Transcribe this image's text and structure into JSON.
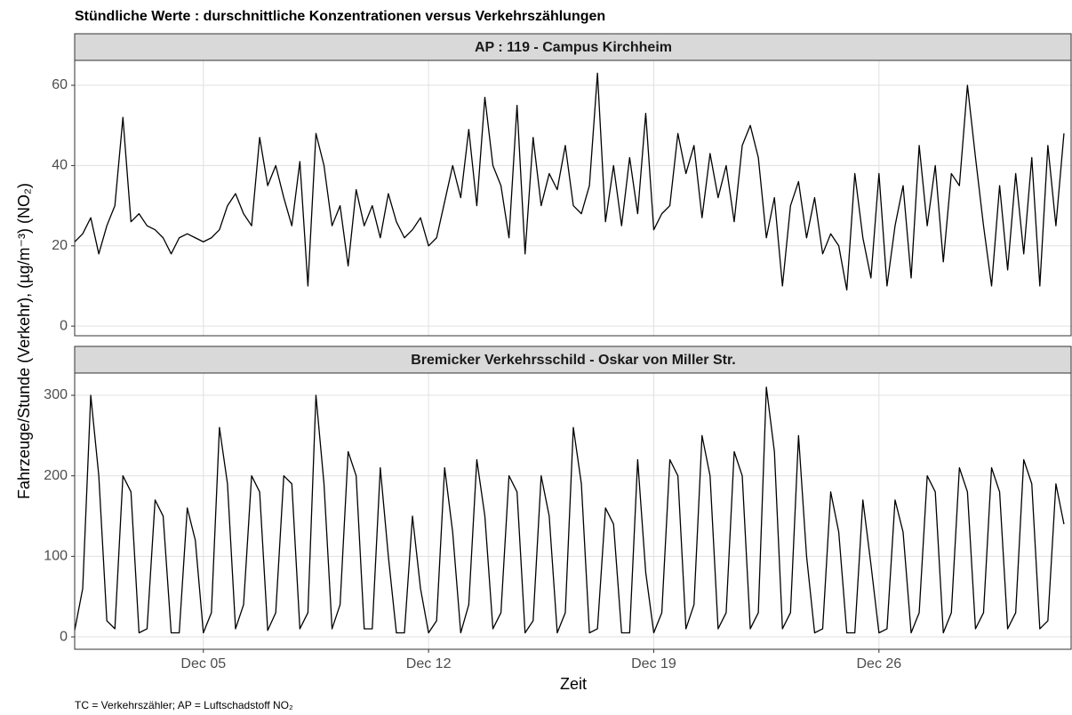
{
  "chart_data": {
    "type": "line",
    "title": "Stündliche Werte : durschnittliche Konzentrationen versus Verkehrszählungen",
    "y_label": "Fahrzeuge/Stunde (Verkehr), (µg/m⁻³) (NO₂)",
    "x_label": "Zeit",
    "caption": "TC = Verkehrszähler; AP = Luftschadstoff NO₂",
    "grid": true,
    "xlim": [
      1,
      32
    ],
    "xticks": [
      {
        "value": 5,
        "label": "Dec 05"
      },
      {
        "value": 12,
        "label": "Dec 12"
      },
      {
        "value": 19,
        "label": "Dec 19"
      },
      {
        "value": 26,
        "label": "Dec 26"
      }
    ],
    "x": [
      1,
      1.25,
      1.5,
      1.75,
      2,
      2.25,
      2.5,
      2.75,
      3,
      3.25,
      3.5,
      3.75,
      4,
      4.25,
      4.5,
      4.75,
      5,
      5.25,
      5.5,
      5.75,
      6,
      6.25,
      6.5,
      6.75,
      7,
      7.25,
      7.5,
      7.75,
      8,
      8.25,
      8.5,
      8.75,
      9,
      9.25,
      9.5,
      9.75,
      10,
      10.25,
      10.5,
      10.75,
      11,
      11.25,
      11.5,
      11.75,
      12,
      12.25,
      12.5,
      12.75,
      13,
      13.25,
      13.5,
      13.75,
      14,
      14.25,
      14.5,
      14.75,
      15,
      15.25,
      15.5,
      15.75,
      16,
      16.25,
      16.5,
      16.75,
      17,
      17.25,
      17.5,
      17.75,
      18,
      18.25,
      18.5,
      18.75,
      19,
      19.25,
      19.5,
      19.75,
      20,
      20.25,
      20.5,
      20.75,
      21,
      21.25,
      21.5,
      21.75,
      22,
      22.25,
      22.5,
      22.75,
      23,
      23.25,
      23.5,
      23.75,
      24,
      24.25,
      24.5,
      24.75,
      25,
      25.25,
      25.5,
      25.75,
      26,
      26.25,
      26.5,
      26.75,
      27,
      27.25,
      27.5,
      27.75,
      28,
      28.25,
      28.5,
      28.75,
      29,
      29.25,
      29.5,
      29.75,
      30,
      30.25,
      30.5,
      30.75,
      31,
      31.25,
      31.5,
      31.75
    ],
    "panels": [
      {
        "name": "AP : 119 - Campus Kirchheim",
        "color": "#000000",
        "ylim": [
          -2.4,
          66.2
        ],
        "yticks": [
          0,
          20,
          40,
          60
        ],
        "values": [
          21,
          23,
          27,
          18,
          25,
          30,
          52,
          26,
          28,
          25,
          24,
          22,
          18,
          22,
          23,
          22,
          21,
          22,
          24,
          30,
          33,
          28,
          25,
          47,
          35,
          40,
          32,
          25,
          41,
          10,
          48,
          40,
          25,
          30,
          15,
          34,
          25,
          30,
          22,
          33,
          26,
          22,
          24,
          27,
          20,
          22,
          31,
          40,
          32,
          49,
          30,
          57,
          40,
          35,
          22,
          55,
          18,
          47,
          30,
          38,
          34,
          45,
          30,
          28,
          35,
          63,
          26,
          40,
          25,
          42,
          28,
          53,
          24,
          28,
          30,
          48,
          38,
          45,
          27,
          43,
          32,
          40,
          26,
          45,
          50,
          42,
          22,
          32,
          10,
          30,
          36,
          22,
          32,
          18,
          23,
          20,
          9,
          38,
          22,
          12,
          38,
          10,
          25,
          35,
          12,
          45,
          25,
          40,
          16,
          38,
          35,
          60,
          42,
          25,
          10,
          35,
          14,
          38,
          18,
          42,
          10,
          45,
          25,
          48
        ]
      },
      {
        "name": "Bremicker Verkehrsschild - Oskar von Miller Str.",
        "color": "#000000",
        "ylim": [
          -15.4,
          327.6
        ],
        "yticks": [
          0,
          100,
          200,
          300
        ],
        "values": [
          8,
          60,
          300,
          200,
          20,
          10,
          200,
          180,
          5,
          10,
          170,
          150,
          5,
          5,
          160,
          120,
          5,
          30,
          260,
          190,
          10,
          40,
          200,
          180,
          8,
          30,
          200,
          190,
          10,
          30,
          300,
          190,
          10,
          40,
          230,
          200,
          10,
          10,
          210,
          100,
          5,
          5,
          150,
          60,
          5,
          20,
          210,
          130,
          5,
          40,
          220,
          150,
          10,
          30,
          200,
          180,
          5,
          20,
          200,
          150,
          5,
          30,
          260,
          190,
          5,
          10,
          160,
          140,
          5,
          5,
          220,
          80,
          5,
          30,
          220,
          200,
          10,
          40,
          250,
          200,
          10,
          30,
          230,
          200,
          10,
          30,
          310,
          230,
          10,
          30,
          250,
          100,
          5,
          10,
          180,
          130,
          5,
          5,
          170,
          90,
          5,
          10,
          170,
          130,
          5,
          30,
          200,
          180,
          5,
          30,
          210,
          180,
          10,
          30,
          210,
          180,
          10,
          30,
          220,
          190,
          10,
          20,
          190,
          140
        ]
      }
    ]
  }
}
